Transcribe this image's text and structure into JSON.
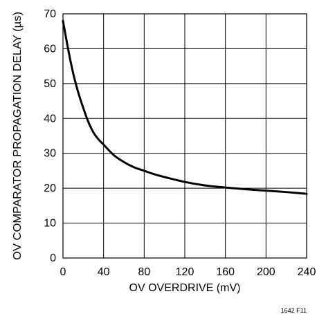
{
  "chart_data": {
    "type": "line",
    "title": "",
    "xlabel": "OV OVERDRIVE (mV)",
    "ylabel": "OV COMPARATOR PROPAGATION DELAY (µs)",
    "xlim": [
      0,
      240
    ],
    "ylim": [
      0,
      70
    ],
    "x_ticks": [
      0,
      40,
      80,
      120,
      160,
      200,
      240
    ],
    "y_ticks": [
      0,
      10,
      20,
      30,
      40,
      50,
      60,
      70
    ],
    "grid": true,
    "series": [
      {
        "x": [
          0,
          5,
          10,
          15,
          20,
          25,
          30,
          35,
          40,
          50,
          60,
          70,
          80,
          90,
          100,
          120,
          140,
          160,
          180,
          200,
          220,
          240
        ],
        "y": [
          68,
          60,
          53,
          47.5,
          43,
          39,
          36,
          34,
          32.5,
          29.5,
          27.5,
          26,
          25,
          24,
          23.2,
          21.8,
          20.8,
          20.2,
          19.7,
          19.3,
          18.9,
          18.4
        ]
      }
    ],
    "note": "1642 F11"
  },
  "colors": {
    "line": "#000000",
    "grid": "#000000",
    "background": "#ffffff"
  }
}
